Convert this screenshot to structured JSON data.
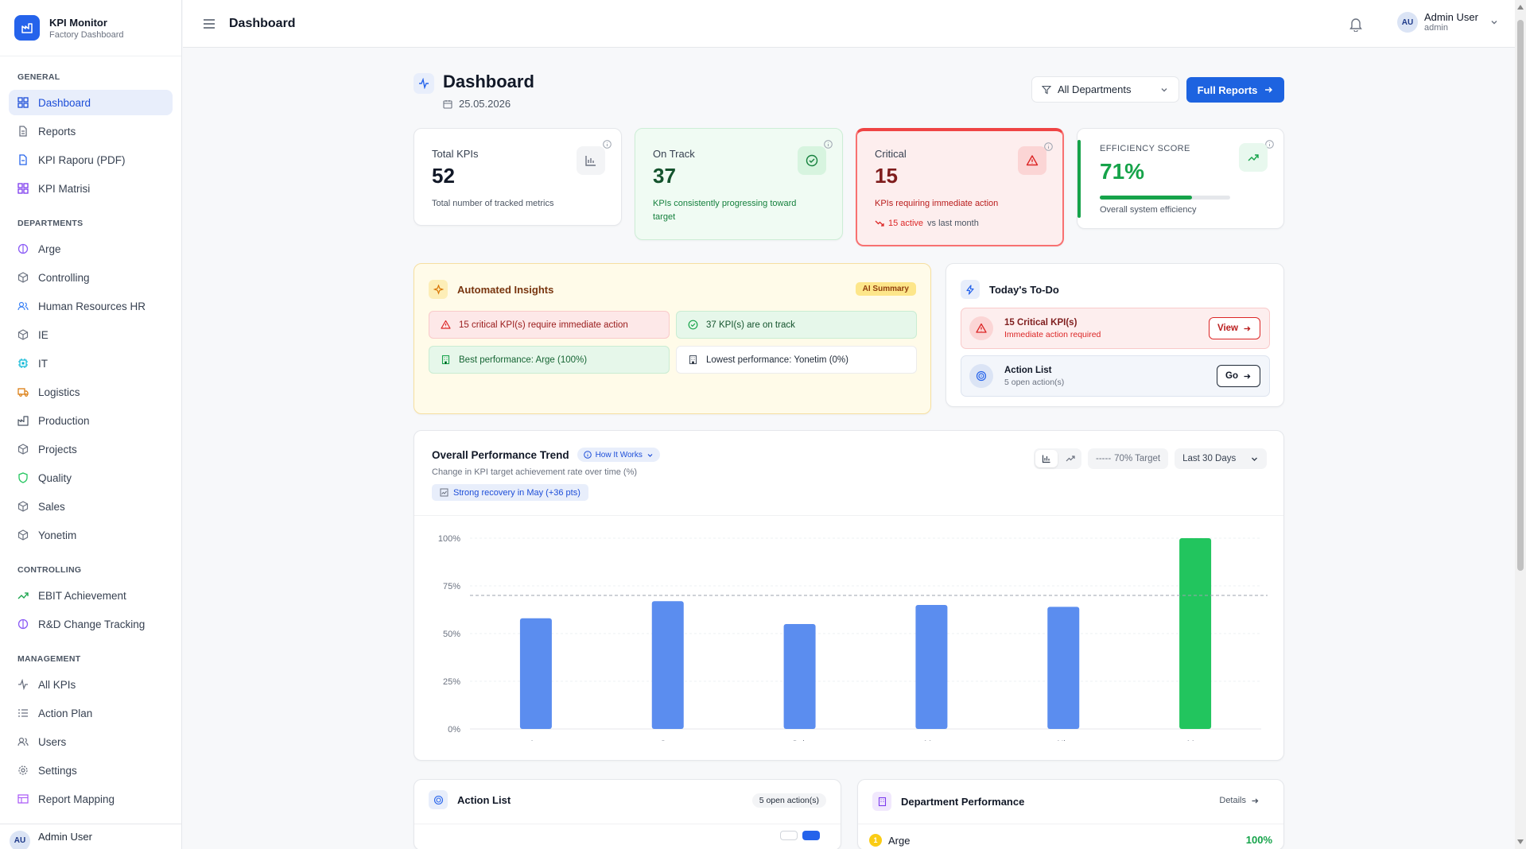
{
  "brand": {
    "title": "KPI Monitor",
    "subtitle": "Factory Dashboard"
  },
  "sidebar": {
    "general_heading": "GENERAL",
    "general": [
      {
        "label": "Dashboard",
        "icon": "grid-icon"
      },
      {
        "label": "Reports",
        "icon": "file-icon"
      },
      {
        "label": "KPI Raporu (PDF)",
        "icon": "file-pdf-icon"
      },
      {
        "label": "KPI Matrisi",
        "icon": "grid-icon"
      }
    ],
    "departments_heading": "DEPARTMENTS",
    "departments": [
      {
        "label": "Arge",
        "icon": "flask-icon"
      },
      {
        "label": "Controlling",
        "icon": "box-icon"
      },
      {
        "label": "Human Resources HR",
        "icon": "users-icon"
      },
      {
        "label": "IE",
        "icon": "box-icon"
      },
      {
        "label": "IT",
        "icon": "cpu-icon"
      },
      {
        "label": "Logistics",
        "icon": "truck-icon"
      },
      {
        "label": "Production",
        "icon": "factory-icon"
      },
      {
        "label": "Projects",
        "icon": "box-icon"
      },
      {
        "label": "Quality",
        "icon": "shield-icon"
      },
      {
        "label": "Sales",
        "icon": "box-icon"
      },
      {
        "label": "Yonetim",
        "icon": "box-icon"
      }
    ],
    "controlling_heading": "CONTROLLING",
    "controlling": [
      {
        "label": "EBIT Achievement",
        "icon": "trending-up-icon"
      },
      {
        "label": "R&D Change Tracking",
        "icon": "flask-icon"
      }
    ],
    "management_heading": "MANAGEMENT",
    "management": [
      {
        "label": "All KPIs",
        "icon": "activity-icon"
      },
      {
        "label": "Action Plan",
        "icon": "list-icon"
      },
      {
        "label": "Users",
        "icon": "users-icon"
      },
      {
        "label": "Settings",
        "icon": "gear-icon"
      },
      {
        "label": "Report Mapping",
        "icon": "table-icon"
      }
    ],
    "footer_user": {
      "initials": "AU",
      "name": "Admin User"
    }
  },
  "topbar": {
    "title": "Dashboard",
    "user": {
      "initials": "AU",
      "name": "Admin User",
      "role": "admin"
    }
  },
  "page": {
    "title": "Dashboard",
    "date": "25.05.2026",
    "department_filter": "All Departments",
    "full_reports": "Full Reports"
  },
  "kpis": {
    "total": {
      "label": "Total KPIs",
      "value": "52",
      "desc": "Total number of tracked metrics"
    },
    "on_track": {
      "label": "On Track",
      "value": "37",
      "desc": "KPIs consistently progressing toward target"
    },
    "critical": {
      "label": "Critical",
      "value": "15",
      "desc": "KPIs requiring immediate action",
      "trend_count": "15 active",
      "trend_text": "vs last month"
    },
    "efficiency": {
      "label": "EFFICIENCY SCORE",
      "value": "71%",
      "progress": 0.71,
      "desc": "Overall system efficiency"
    }
  },
  "insights": {
    "title": "Automated Insights",
    "badge": "AI Summary",
    "items": {
      "critical": "15 critical KPI(s) require immediate action",
      "on_track": "37 KPI(s) are on track",
      "best": "Best performance: Arge (100%)",
      "lowest": "Lowest performance: Yonetim (0%)"
    }
  },
  "todo": {
    "title": "Today's To-Do",
    "critical": {
      "title": "15 Critical KPI(s)",
      "sub": "Immediate action required",
      "button": "View"
    },
    "actions": {
      "title": "Action List",
      "sub": "5 open action(s)",
      "button": "Go"
    }
  },
  "trend": {
    "title": "Overall Performance Trend",
    "how_it_works": "How It Works",
    "subtitle": "Change in KPI target achievement rate over time (%)",
    "recovery_badge": "Strong recovery in May (+36 pts)",
    "target_label": "70% Target",
    "range": "Last 30 Days"
  },
  "chart_data": {
    "type": "bar",
    "categories": [
      "Ara",
      "Oca",
      "Şub",
      "Mar",
      "Nis",
      "May"
    ],
    "values": [
      58,
      67,
      55,
      65,
      64,
      100
    ],
    "highlight_index": 5,
    "bar_color": "#5b8def",
    "highlight_color": "#22c55e",
    "ylim": [
      0,
      100
    ],
    "yticks": [
      "0%",
      "25%",
      "50%",
      "75%",
      "100%"
    ],
    "target": 70,
    "grid": true
  },
  "action_list": {
    "title": "Action List",
    "badge": "5 open action(s)"
  },
  "dept_perf": {
    "title": "Department Performance",
    "details": "Details",
    "first": {
      "rank": "1",
      "name": "Arge",
      "value": "100%"
    }
  }
}
